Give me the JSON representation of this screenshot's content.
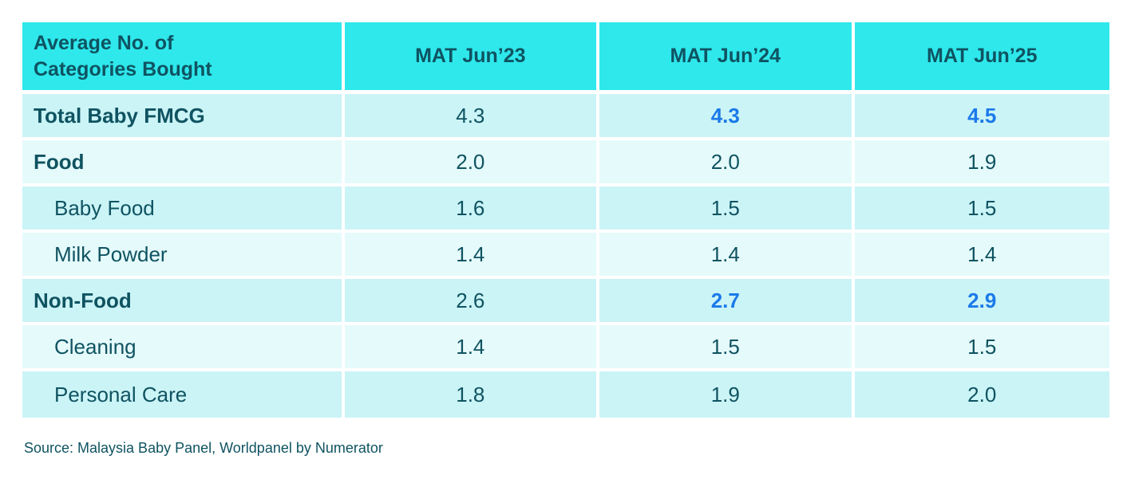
{
  "table": {
    "corner_title": "Average No. of Categories Bought",
    "columns": [
      "MAT Jun’23",
      "MAT Jun’24",
      "MAT Jun’25"
    ],
    "rows": [
      {
        "label": "Total Baby FMCG",
        "cells": [
          "4.3",
          "4.3",
          "4.5"
        ]
      },
      {
        "label": "Food",
        "cells": [
          "2.0",
          "2.0",
          "1.9"
        ]
      },
      {
        "label": "Baby Food",
        "cells": [
          "1.6",
          "1.5",
          "1.5"
        ]
      },
      {
        "label": "Milk Powder",
        "cells": [
          "1.4",
          "1.4",
          "1.4"
        ]
      },
      {
        "label": "Non-Food",
        "cells": [
          "2.6",
          "2.7",
          "2.9"
        ]
      },
      {
        "label": "Cleaning",
        "cells": [
          "1.4",
          "1.5",
          "1.5"
        ]
      },
      {
        "label": "Personal Care",
        "cells": [
          "1.8",
          "1.9",
          "2.0"
        ]
      }
    ]
  },
  "footer": {
    "source": "Source: Malaysia Baby Panel, Worldpanel by Numerator"
  },
  "colors": {
    "header_bg": "#2ee8ec",
    "row_bg_dark": "#cbf4f7",
    "row_bg_light": "#e5fafb",
    "text_teal": "#0f5361",
    "highlight_blue": "#1b7ae9",
    "page_bg": "#ffffff"
  },
  "chart_data": {
    "type": "table",
    "title": "Average No. of Categories Bought",
    "columns": [
      "MAT Jun’23",
      "MAT Jun’24",
      "MAT Jun’25"
    ],
    "rows": [
      {
        "label": "Total Baby FMCG",
        "values": [
          4.3,
          4.3,
          4.5
        ],
        "bold": true,
        "indent": false,
        "highlighted_columns": [
          1,
          2
        ]
      },
      {
        "label": "Food",
        "values": [
          2.0,
          2.0,
          1.9
        ],
        "bold": true,
        "indent": false,
        "highlighted_columns": []
      },
      {
        "label": "Baby Food",
        "values": [
          1.6,
          1.5,
          1.5
        ],
        "bold": false,
        "indent": true,
        "highlighted_columns": []
      },
      {
        "label": "Milk Powder",
        "values": [
          1.4,
          1.4,
          1.4
        ],
        "bold": false,
        "indent": true,
        "highlighted_columns": []
      },
      {
        "label": "Non-Food",
        "values": [
          2.6,
          2.7,
          2.9
        ],
        "bold": true,
        "indent": false,
        "highlighted_columns": [
          1,
          2
        ]
      },
      {
        "label": "Cleaning",
        "values": [
          1.4,
          1.5,
          1.5
        ],
        "bold": false,
        "indent": true,
        "highlighted_columns": []
      },
      {
        "label": "Personal Care",
        "values": [
          1.8,
          1.9,
          2.0
        ],
        "bold": false,
        "indent": true,
        "highlighted_columns": []
      }
    ],
    "source": "Source: Malaysia Baby Panel, Worldpanel by Numerator",
    "layout": {
      "grid": "white separators between all cells",
      "row_striping": "alternating dark/light cyan starting dark",
      "highlight_style": "bold blue values"
    }
  }
}
